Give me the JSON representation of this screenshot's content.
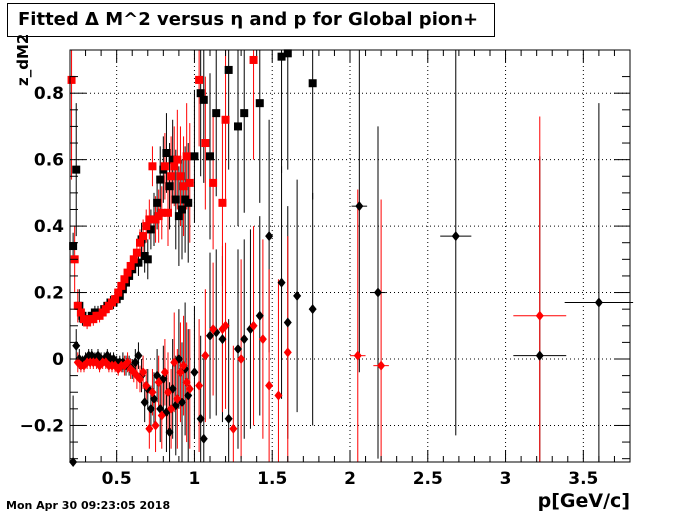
{
  "chart_data": {
    "type": "scatter",
    "title": "Fitted Δ M^2 versus η and p for Global pion+",
    "xlabel": "p[GeV/c]",
    "ylabel": "z_dM2",
    "xlim": [
      0.2,
      3.8
    ],
    "ylim": [
      -0.31,
      0.93
    ],
    "x_ticks": [
      0.5,
      1,
      1.5,
      2,
      2.5,
      3,
      3.5
    ],
    "x_tick_labels": [
      "0.5",
      "1",
      "1.5",
      "2",
      "2.5",
      "3",
      "3.5"
    ],
    "y_ticks": [
      -0.2,
      0,
      0.2,
      0.4,
      0.6,
      0.8
    ],
    "y_tick_labels": [
      "−0.2",
      "0",
      "0.2",
      "0.4",
      "0.6",
      "0.8"
    ],
    "grid": true,
    "colors": {
      "black": "#000000",
      "red": "#ff0000"
    },
    "series": [
      {
        "marker": "square",
        "color": "#000000",
        "points": [
          [
            0.22,
            0.34,
            0.04
          ],
          [
            0.24,
            0.57,
            0.2
          ],
          [
            0.26,
            0.16,
            0.05
          ],
          [
            0.28,
            0.13,
            0.03
          ],
          [
            0.3,
            0.12,
            0.02
          ],
          [
            0.32,
            0.12,
            0.02
          ],
          [
            0.34,
            0.13,
            0.02
          ],
          [
            0.36,
            0.14,
            0.02
          ],
          [
            0.38,
            0.14,
            0.02
          ],
          [
            0.4,
            0.14,
            0.02
          ],
          [
            0.42,
            0.15,
            0.02
          ],
          [
            0.44,
            0.16,
            0.02
          ],
          [
            0.46,
            0.17,
            0.02
          ],
          [
            0.48,
            0.17,
            0.02
          ],
          [
            0.5,
            0.18,
            0.02
          ],
          [
            0.52,
            0.19,
            0.02
          ],
          [
            0.54,
            0.21,
            0.02
          ],
          [
            0.56,
            0.23,
            0.03
          ],
          [
            0.58,
            0.25,
            0.03
          ],
          [
            0.6,
            0.27,
            0.03
          ],
          [
            0.62,
            0.29,
            0.03
          ],
          [
            0.64,
            0.29,
            0.04
          ],
          [
            0.66,
            0.36,
            0.05
          ],
          [
            0.68,
            0.31,
            0.05
          ],
          [
            0.7,
            0.3,
            0.06
          ],
          [
            0.72,
            0.39,
            0.06
          ],
          [
            0.74,
            0.42,
            0.08
          ],
          [
            0.76,
            0.47,
            0.08
          ],
          [
            0.78,
            0.54,
            0.1
          ],
          [
            0.8,
            0.57,
            0.1
          ],
          [
            0.82,
            0.62,
            0.12
          ],
          [
            0.84,
            0.52,
            0.13
          ],
          [
            0.86,
            0.6,
            0.12
          ],
          [
            0.88,
            0.48,
            0.15
          ],
          [
            0.9,
            0.43,
            0.15
          ],
          [
            0.92,
            0.45,
            0.15
          ],
          [
            0.94,
            0.48,
            0.16
          ],
          [
            0.96,
            0.47,
            0.18
          ],
          [
            1.0,
            0.61,
            0.2
          ],
          [
            1.04,
            0.8,
            0.25
          ],
          [
            1.06,
            0.78,
            0.25
          ],
          [
            1.1,
            0.61,
            0.25
          ],
          [
            1.14,
            0.74,
            0.25
          ],
          [
            1.22,
            0.87,
            0.3
          ],
          [
            1.28,
            0.7,
            0.3
          ],
          [
            1.32,
            0.74,
            0.3
          ],
          [
            1.42,
            0.77,
            0.3
          ],
          [
            1.56,
            0.91,
            0.35
          ],
          [
            1.6,
            0.92,
            0.35
          ],
          [
            1.76,
            0.83,
            0.35
          ]
        ]
      },
      {
        "marker": "square",
        "color": "#ff0000",
        "points": [
          [
            0.21,
            0.84,
            0.3
          ],
          [
            0.23,
            0.3,
            0.1
          ],
          [
            0.25,
            0.16,
            0.05
          ],
          [
            0.27,
            0.14,
            0.03
          ],
          [
            0.29,
            0.12,
            0.02
          ],
          [
            0.31,
            0.11,
            0.02
          ],
          [
            0.33,
            0.12,
            0.02
          ],
          [
            0.35,
            0.12,
            0.02
          ],
          [
            0.37,
            0.13,
            0.02
          ],
          [
            0.39,
            0.13,
            0.02
          ],
          [
            0.41,
            0.14,
            0.02
          ],
          [
            0.43,
            0.15,
            0.02
          ],
          [
            0.45,
            0.16,
            0.02
          ],
          [
            0.47,
            0.17,
            0.02
          ],
          [
            0.49,
            0.18,
            0.02
          ],
          [
            0.51,
            0.2,
            0.02
          ],
          [
            0.53,
            0.22,
            0.02
          ],
          [
            0.55,
            0.24,
            0.03
          ],
          [
            0.57,
            0.26,
            0.03
          ],
          [
            0.59,
            0.28,
            0.03
          ],
          [
            0.61,
            0.3,
            0.03
          ],
          [
            0.63,
            0.32,
            0.04
          ],
          [
            0.65,
            0.35,
            0.04
          ],
          [
            0.67,
            0.37,
            0.05
          ],
          [
            0.69,
            0.4,
            0.05
          ],
          [
            0.71,
            0.42,
            0.06
          ],
          [
            0.73,
            0.58,
            0.06
          ],
          [
            0.75,
            0.42,
            0.07
          ],
          [
            0.77,
            0.43,
            0.08
          ],
          [
            0.79,
            0.44,
            0.08
          ],
          [
            0.81,
            0.58,
            0.1
          ],
          [
            0.83,
            0.44,
            0.1
          ],
          [
            0.85,
            0.55,
            0.12
          ],
          [
            0.87,
            0.58,
            0.12
          ],
          [
            0.89,
            0.6,
            0.15
          ],
          [
            0.91,
            0.55,
            0.15
          ],
          [
            0.93,
            0.52,
            0.15
          ],
          [
            0.95,
            0.61,
            0.16
          ],
          [
            0.97,
            0.53,
            0.18
          ],
          [
            1.03,
            0.84,
            0.2
          ],
          [
            1.07,
            0.65,
            0.2
          ],
          [
            1.12,
            0.53,
            0.2
          ],
          [
            1.18,
            0.47,
            0.25
          ],
          [
            1.2,
            0.72,
            0.25
          ],
          [
            1.38,
            0.9,
            0.3
          ]
        ]
      },
      {
        "marker": "diamond",
        "color": "#000000",
        "points": [
          [
            0.22,
            -0.31,
            0.2
          ],
          [
            0.24,
            0.04,
            0.05
          ],
          [
            0.26,
            0.0,
            0.03
          ],
          [
            0.28,
            -0.01,
            0.02
          ],
          [
            0.3,
            0.0,
            0.02
          ],
          [
            0.32,
            0.01,
            0.02
          ],
          [
            0.34,
            0.01,
            0.02
          ],
          [
            0.36,
            0.0,
            0.02
          ],
          [
            0.38,
            0.01,
            0.02
          ],
          [
            0.4,
            0.0,
            0.02
          ],
          [
            0.42,
            0.0,
            0.02
          ],
          [
            0.44,
            0.01,
            0.02
          ],
          [
            0.46,
            0.0,
            0.02
          ],
          [
            0.48,
            0.0,
            0.02
          ],
          [
            0.5,
            -0.01,
            0.02
          ],
          [
            0.52,
            -0.01,
            0.02
          ],
          [
            0.54,
            -0.01,
            0.03
          ],
          [
            0.56,
            -0.02,
            0.03
          ],
          [
            0.58,
            -0.02,
            0.03
          ],
          [
            0.6,
            -0.03,
            0.03
          ],
          [
            0.62,
            -0.01,
            0.04
          ],
          [
            0.64,
            0.01,
            0.04
          ],
          [
            0.66,
            -0.05,
            0.05
          ],
          [
            0.68,
            -0.13,
            0.06
          ],
          [
            0.7,
            -0.09,
            0.06
          ],
          [
            0.72,
            -0.15,
            0.07
          ],
          [
            0.74,
            -0.12,
            0.08
          ],
          [
            0.76,
            -0.05,
            0.08
          ],
          [
            0.78,
            -0.15,
            0.1
          ],
          [
            0.8,
            -0.06,
            0.1
          ],
          [
            0.82,
            -0.16,
            0.12
          ],
          [
            0.84,
            -0.22,
            0.15
          ],
          [
            0.86,
            -0.09,
            0.15
          ],
          [
            0.88,
            -0.14,
            0.15
          ],
          [
            0.9,
            0.0,
            0.15
          ],
          [
            0.92,
            -0.13,
            0.18
          ],
          [
            0.94,
            -0.03,
            0.2
          ],
          [
            0.96,
            -0.11,
            0.2
          ],
          [
            1.0,
            -0.04,
            0.2
          ],
          [
            1.04,
            -0.18,
            0.25
          ],
          [
            1.06,
            -0.24,
            0.25
          ],
          [
            1.1,
            0.07,
            0.25
          ],
          [
            1.14,
            0.08,
            0.25
          ],
          [
            1.18,
            0.06,
            0.25
          ],
          [
            1.22,
            -0.18,
            0.3
          ],
          [
            1.28,
            0.03,
            0.3
          ],
          [
            1.32,
            0.06,
            0.3
          ],
          [
            1.36,
            0.09,
            0.3
          ],
          [
            1.42,
            0.13,
            0.3
          ],
          [
            1.48,
            0.37,
            0.35
          ],
          [
            1.56,
            0.23,
            0.35
          ],
          [
            1.6,
            0.11,
            0.35
          ],
          [
            1.66,
            0.19,
            0.35
          ],
          [
            1.76,
            0.15,
            0.35
          ],
          [
            2.06,
            0.46,
            0.5
          ],
          [
            2.18,
            0.2,
            0.5
          ],
          [
            2.68,
            0.37,
            0.6
          ],
          [
            3.22,
            0.01,
            0.6
          ],
          [
            3.6,
            0.17,
            0.6
          ]
        ]
      },
      {
        "marker": "diamond",
        "color": "#ff0000",
        "points": [
          [
            0.25,
            -0.01,
            0.03
          ],
          [
            0.27,
            -0.02,
            0.02
          ],
          [
            0.29,
            -0.02,
            0.02
          ],
          [
            0.31,
            -0.01,
            0.02
          ],
          [
            0.33,
            -0.01,
            0.02
          ],
          [
            0.35,
            -0.01,
            0.02
          ],
          [
            0.37,
            -0.01,
            0.02
          ],
          [
            0.39,
            -0.02,
            0.02
          ],
          [
            0.41,
            -0.01,
            0.02
          ],
          [
            0.43,
            -0.01,
            0.02
          ],
          [
            0.45,
            -0.02,
            0.02
          ],
          [
            0.47,
            -0.02,
            0.02
          ],
          [
            0.49,
            -0.02,
            0.02
          ],
          [
            0.51,
            -0.03,
            0.02
          ],
          [
            0.53,
            -0.02,
            0.02
          ],
          [
            0.55,
            -0.02,
            0.03
          ],
          [
            0.57,
            -0.01,
            0.03
          ],
          [
            0.59,
            -0.03,
            0.03
          ],
          [
            0.61,
            -0.04,
            0.03
          ],
          [
            0.63,
            -0.05,
            0.04
          ],
          [
            0.65,
            -0.06,
            0.04
          ],
          [
            0.67,
            -0.04,
            0.05
          ],
          [
            0.69,
            -0.08,
            0.05
          ],
          [
            0.71,
            -0.21,
            0.06
          ],
          [
            0.73,
            -0.1,
            0.07
          ],
          [
            0.75,
            -0.2,
            0.08
          ],
          [
            0.77,
            -0.07,
            0.08
          ],
          [
            0.79,
            -0.17,
            0.1
          ],
          [
            0.81,
            -0.04,
            0.1
          ],
          [
            0.83,
            -0.1,
            0.12
          ],
          [
            0.85,
            -0.15,
            0.12
          ],
          [
            0.87,
            -0.01,
            0.15
          ],
          [
            0.89,
            -0.12,
            0.15
          ],
          [
            0.91,
            -0.04,
            0.15
          ],
          [
            0.93,
            -0.02,
            0.15
          ],
          [
            0.95,
            -0.07,
            0.18
          ],
          [
            0.97,
            -0.09,
            0.18
          ],
          [
            1.03,
            -0.08,
            0.2
          ],
          [
            1.07,
            0.01,
            0.2
          ],
          [
            1.12,
            0.09,
            0.2
          ],
          [
            1.18,
            0.09,
            0.25
          ],
          [
            1.2,
            0.1,
            0.25
          ],
          [
            1.25,
            -0.21,
            0.25
          ],
          [
            1.3,
            0.0,
            0.3
          ],
          [
            1.38,
            0.1,
            0.3
          ],
          [
            1.44,
            0.06,
            0.3
          ],
          [
            1.48,
            -0.08,
            0.35
          ],
          [
            1.54,
            -0.11,
            0.35
          ],
          [
            1.6,
            0.02,
            0.35
          ],
          [
            2.05,
            0.01,
            0.5
          ],
          [
            2.2,
            -0.02,
            0.5
          ],
          [
            3.22,
            0.13,
            0.6
          ]
        ]
      }
    ],
    "x_error_bars": [
      {
        "x": 2.06,
        "y": 0.46,
        "xerr": 0.05,
        "color": "#000000"
      },
      {
        "x": 2.18,
        "y": 0.2,
        "xerr": 0.05,
        "color": "#000000"
      },
      {
        "x": 2.68,
        "y": 0.37,
        "xerr": 0.1,
        "color": "#000000"
      },
      {
        "x": 3.22,
        "y": 0.01,
        "xerr": 0.17,
        "color": "#000000"
      },
      {
        "x": 3.6,
        "y": 0.17,
        "xerr": 0.22,
        "color": "#000000"
      },
      {
        "x": 2.05,
        "y": 0.01,
        "xerr": 0.05,
        "color": "#ff0000"
      },
      {
        "x": 2.2,
        "y": -0.02,
        "xerr": 0.05,
        "color": "#ff0000"
      },
      {
        "x": 3.22,
        "y": 0.13,
        "xerr": 0.17,
        "color": "#ff0000"
      }
    ]
  },
  "timestamp": "Mon Apr 30 09:23:05 2018"
}
